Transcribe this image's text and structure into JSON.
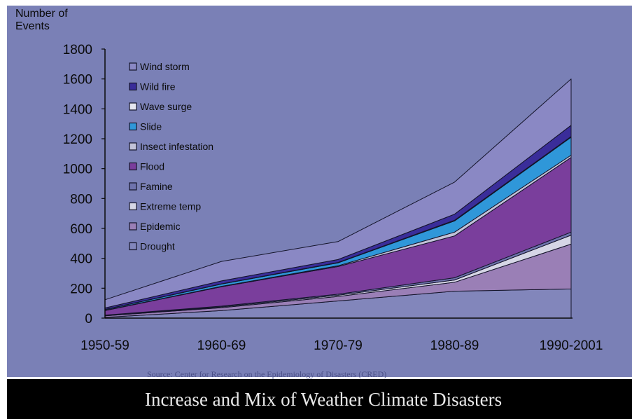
{
  "slide": {
    "title": "Increase and Mix of Weather Climate Disasters",
    "source": "Source: Center for Research on the Epidemiology of Disasters (CRED)"
  },
  "colors": {
    "background": "#7a80b6",
    "title_bar": "#000000",
    "title_text": "#e9e9e9",
    "axis_text": "#0a0a0a"
  },
  "chart_data": {
    "type": "area",
    "stacked": true,
    "ylabel_lines": [
      "Number of",
      "Events"
    ],
    "categories": [
      "1950-59",
      "1960-69",
      "1970-79",
      "1980-89",
      "1990-2001"
    ],
    "ylim": [
      0,
      1800
    ],
    "yticks": [
      0,
      200,
      400,
      600,
      800,
      1000,
      1200,
      1400,
      1600,
      1800
    ],
    "grid": false,
    "legend_position": "top-left",
    "series": [
      {
        "name": "Drought",
        "color": "#8286bb",
        "values": [
          5,
          50,
          115,
          180,
          195
        ]
      },
      {
        "name": "Epidemic",
        "color": "#9a7fb6",
        "values": [
          10,
          20,
          30,
          60,
          300
        ]
      },
      {
        "name": "Extreme temp",
        "color": "#d6d6e6",
        "values": [
          2,
          5,
          8,
          15,
          60
        ]
      },
      {
        "name": "Famine",
        "color": "#6f73ad",
        "values": [
          3,
          5,
          7,
          15,
          20
        ]
      },
      {
        "name": "Flood",
        "color": "#7a3e9c",
        "values": [
          30,
          130,
          185,
          280,
          500
        ]
      },
      {
        "name": "Insect infestation",
        "color": "#c2c2d8",
        "values": [
          2,
          3,
          5,
          25,
          15
        ]
      },
      {
        "name": "Slide",
        "color": "#2f97d9",
        "values": [
          5,
          15,
          20,
          75,
          120
        ]
      },
      {
        "name": "Wave surge",
        "color": "#e6e6f0",
        "values": [
          1,
          1,
          2,
          5,
          5
        ]
      },
      {
        "name": "Wild fire",
        "color": "#3a2d9a",
        "values": [
          10,
          20,
          20,
          40,
          75
        ]
      },
      {
        "name": "Wind storm",
        "color": "#8a88c4",
        "values": [
          55,
          130,
          120,
          215,
          310
        ]
      }
    ],
    "legend_order": [
      "Wind storm",
      "Wild fire",
      "Wave surge",
      "Slide",
      "Insect infestation",
      "Flood",
      "Famine",
      "Extreme temp",
      "Epidemic",
      "Drought"
    ]
  }
}
